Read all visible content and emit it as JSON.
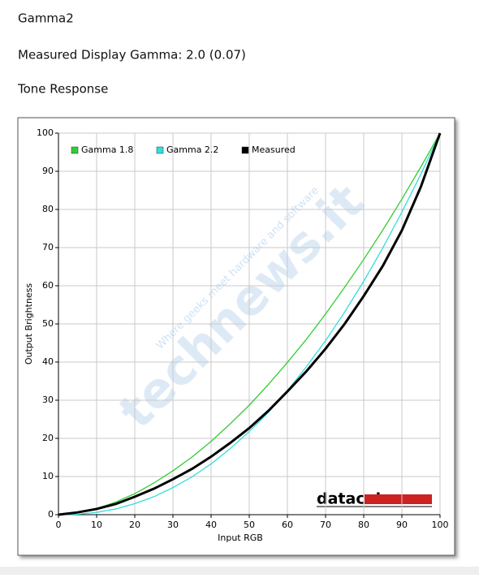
{
  "page": {
    "title": "Gamma2",
    "measured": "Measured Display Gamma: 2.0 (0.07)",
    "section": "Tone Response"
  },
  "chart_data": {
    "type": "line",
    "x_label": "Input RGB",
    "y_label": "Output Brightness",
    "watermark": "technews.it",
    "watermark_tagline": "Where geeks meet hardware and software",
    "logo": "datacolor",
    "x": [
      0,
      5,
      10,
      15,
      20,
      25,
      30,
      35,
      40,
      45,
      50,
      55,
      60,
      65,
      70,
      75,
      80,
      85,
      90,
      95,
      100
    ],
    "series": [
      {
        "name": "Gamma 1.8",
        "color": "#33cc33",
        "values": [
          0,
          0.5,
          1.6,
          3.3,
          5.5,
          8.3,
          11.5,
          15.1,
          19.2,
          23.8,
          28.7,
          34.1,
          39.9,
          46.0,
          52.6,
          59.6,
          66.9,
          74.6,
          82.7,
          91.2,
          100
        ]
      },
      {
        "name": "Gamma 2.2",
        "color": "#33dddd",
        "values": [
          0,
          0.1,
          0.6,
          1.5,
          2.9,
          4.7,
          7.1,
          9.9,
          13.3,
          17.3,
          21.8,
          26.8,
          32.5,
          38.8,
          45.6,
          53.1,
          61.2,
          69.9,
          79.3,
          89.3,
          100
        ]
      },
      {
        "name": "Measured",
        "color": "#000000",
        "values": [
          0,
          0.6,
          1.5,
          2.8,
          4.7,
          6.8,
          9.3,
          12,
          15.2,
          18.8,
          22.7,
          27.2,
          32.3,
          37.6,
          43.5,
          50.0,
          57.3,
          65.2,
          74.5,
          86,
          100
        ]
      }
    ],
    "xlim": [
      0,
      100
    ],
    "ylim": [
      0,
      100
    ],
    "xticks": [
      0,
      10,
      20,
      30,
      40,
      50,
      60,
      70,
      80,
      90,
      100
    ],
    "yticks": [
      0,
      10,
      20,
      30,
      40,
      50,
      60,
      70,
      80,
      90,
      100
    ],
    "grid": true,
    "legend": "top-left"
  }
}
